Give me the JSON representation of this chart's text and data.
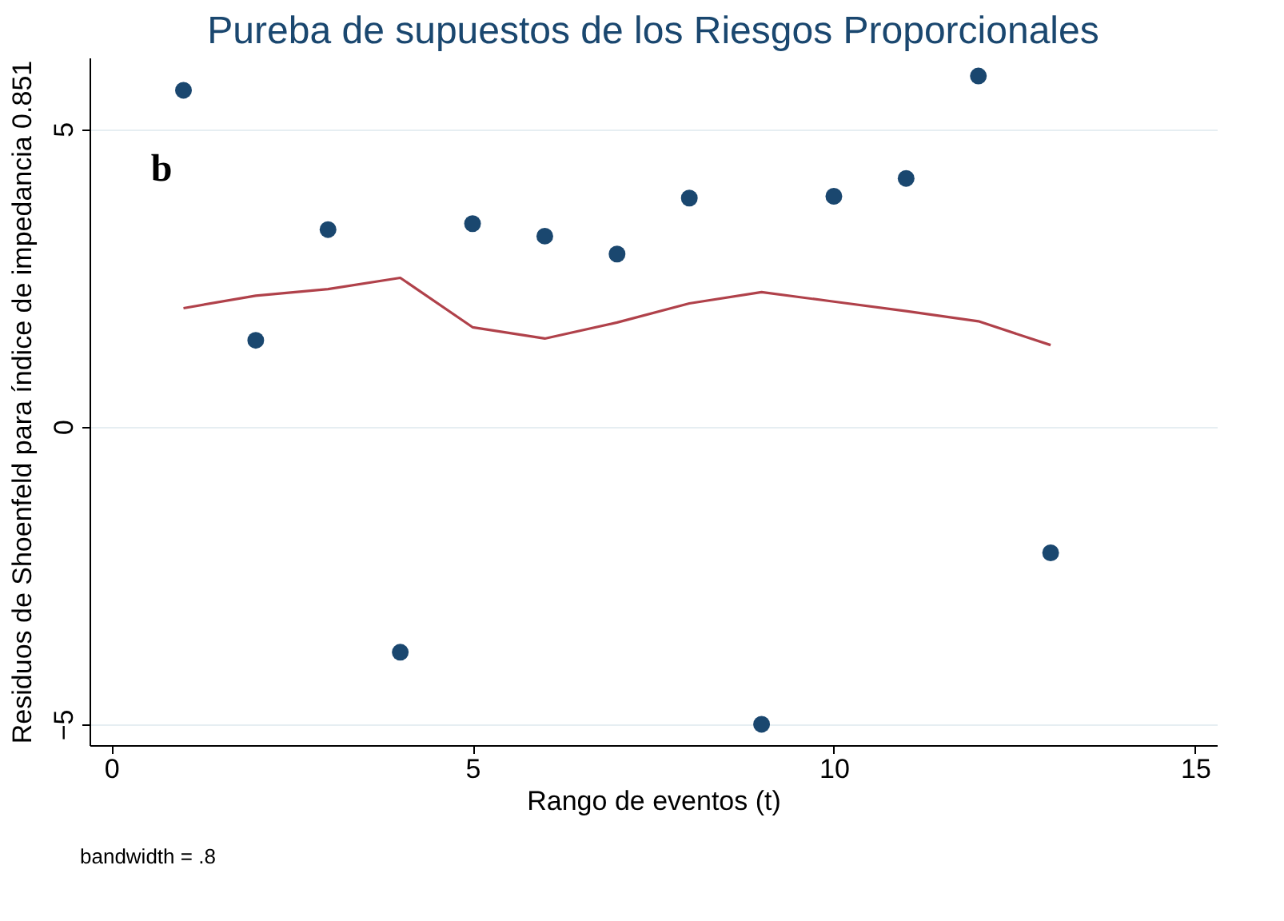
{
  "chart_data": {
    "type": "scatter",
    "title": "Pureba de supuestos de los Riesgos Proporcionales",
    "xlabel": "Rango de eventos (t)",
    "ylabel": "Residuos de Shoenfeld para índice de impedancia 0.851",
    "x": [
      1,
      2,
      3,
      4,
      5,
      6,
      7,
      8,
      9,
      10,
      11,
      12,
      13
    ],
    "series": [
      {
        "marker": "circle",
        "color": "#1a476f",
        "values": [
          5.65,
          1.45,
          3.31,
          -3.79,
          3.41,
          3.2,
          2.9,
          3.84,
          -5.0,
          3.87,
          4.17,
          5.89,
          -2.12
        ]
      },
      {
        "type": "line",
        "color": "#b0414a",
        "values": [
          1.99,
          2.2,
          2.31,
          2.5,
          1.67,
          1.48,
          1.75,
          2.07,
          2.26,
          2.1,
          1.94,
          1.77,
          1.37
        ]
      }
    ],
    "xlim": [
      -0.3,
      15.3
    ],
    "ylim": [
      -5.35,
      6.2
    ],
    "xticks": [
      0,
      5,
      10,
      15
    ],
    "yticks": [
      -5,
      0,
      5
    ],
    "grid": "y",
    "annotations": [
      "b",
      "bandwidth = .8"
    ]
  }
}
